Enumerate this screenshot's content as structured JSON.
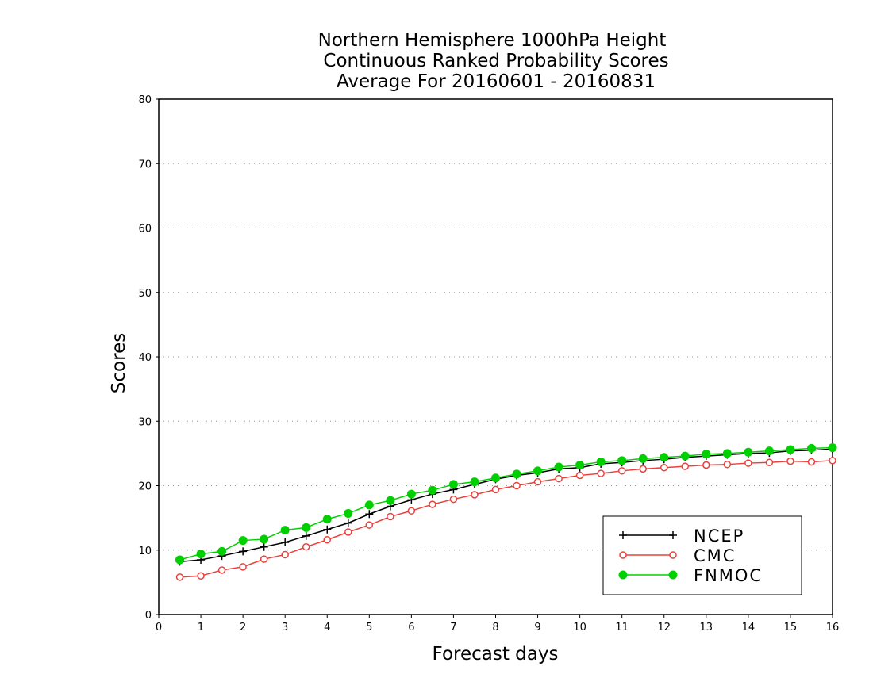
{
  "chart_data": {
    "type": "line",
    "title": [
      "Northern Hemisphere 1000hPa Height",
      "Continuous Ranked Probability Scores",
      "Average For 20160601 - 20160831"
    ],
    "xlabel": "Forecast days",
    "ylabel": "Scores",
    "xlim": [
      0,
      16
    ],
    "ylim": [
      0,
      80
    ],
    "xticks": [
      "0",
      "1",
      "2",
      "3",
      "4",
      "5",
      "6",
      "7",
      "8",
      "9",
      "10",
      "11",
      "12",
      "13",
      "14",
      "15",
      "16"
    ],
    "yticks": [
      "0",
      "10",
      "20",
      "30",
      "40",
      "50",
      "60",
      "70",
      "80"
    ],
    "grid": "horizontal-dotted",
    "legend_position": "bottom-right",
    "x": [
      0.5,
      1,
      1.5,
      2,
      2.5,
      3,
      3.5,
      4,
      4.5,
      5,
      5.5,
      6,
      6.5,
      7,
      7.5,
      8,
      8.5,
      9,
      9.5,
      10,
      10.5,
      11,
      11.5,
      12,
      12.5,
      13,
      13.5,
      14,
      14.5,
      15,
      15.5,
      16
    ],
    "series": [
      {
        "name": "NCEP",
        "color": "#000000",
        "marker": "plus",
        "values": [
          8.2,
          8.5,
          9.1,
          9.8,
          10.5,
          11.2,
          12.2,
          13.2,
          14.2,
          15.6,
          16.8,
          17.8,
          18.7,
          19.4,
          20.2,
          21.0,
          21.6,
          22.0,
          22.6,
          22.8,
          23.4,
          23.6,
          23.9,
          24.1,
          24.4,
          24.6,
          24.8,
          25.0,
          25.1,
          25.4,
          25.5,
          25.7
        ]
      },
      {
        "name": "CMC",
        "color": "#e8413c",
        "marker": "open-circle",
        "values": [
          5.8,
          6.0,
          6.9,
          7.4,
          8.6,
          9.3,
          10.5,
          11.6,
          12.8,
          13.9,
          15.2,
          16.1,
          17.1,
          17.9,
          18.6,
          19.4,
          20.0,
          20.6,
          21.1,
          21.6,
          21.9,
          22.3,
          22.6,
          22.8,
          23.0,
          23.2,
          23.3,
          23.5,
          23.6,
          23.8,
          23.7,
          23.9
        ]
      },
      {
        "name": "FNMOC",
        "color": "#00d000",
        "marker": "filled-circle",
        "values": [
          8.5,
          9.4,
          9.8,
          11.5,
          11.7,
          13.1,
          13.5,
          14.8,
          15.7,
          17.0,
          17.7,
          18.7,
          19.3,
          20.2,
          20.6,
          21.2,
          21.8,
          22.3,
          22.9,
          23.2,
          23.7,
          23.9,
          24.2,
          24.4,
          24.6,
          24.9,
          25.0,
          25.2,
          25.4,
          25.6,
          25.8,
          25.9
        ]
      }
    ]
  }
}
